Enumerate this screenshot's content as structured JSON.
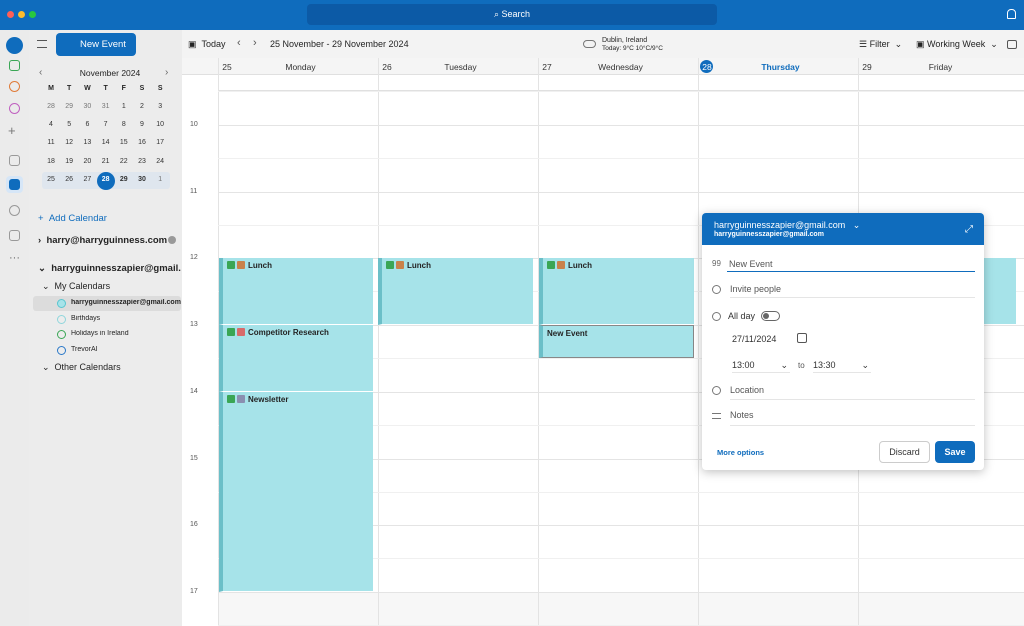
{
  "window": {
    "search": "Search"
  },
  "toolbar": {
    "new_event": "New Event",
    "today": "Today",
    "range": "25 November - 29 November 2024",
    "weather_location": "Dublin, Ireland",
    "weather_summary": "Today: 9°C 10°C/9°C",
    "filter": "Filter",
    "view": "Working Week"
  },
  "mini_calendar": {
    "month": "November 2024",
    "weekdays": [
      "M",
      "T",
      "W",
      "T",
      "F",
      "S",
      "S"
    ],
    "weeks": [
      [
        28,
        29,
        30,
        31,
        1,
        2,
        3
      ],
      [
        4,
        5,
        6,
        7,
        8,
        9,
        10
      ],
      [
        11,
        12,
        13,
        14,
        15,
        16,
        17
      ],
      [
        18,
        19,
        20,
        21,
        22,
        23,
        24
      ],
      [
        25,
        26,
        27,
        28,
        29,
        30,
        1
      ]
    ]
  },
  "sidebar": {
    "add_calendar": "Add Calendar",
    "account_1": "harry@harryguinness.com",
    "account_2": "harryguinnesszapier@gmail.com",
    "my_calendars": "My Calendars",
    "calendars": [
      "harryguinnesszapier@gmail.com",
      "Birthdays",
      "Holidays in Ireland",
      "TrevorAI"
    ],
    "other_calendars": "Other Calendars"
  },
  "calendar": {
    "days": [
      {
        "date": 25,
        "name": "Monday"
      },
      {
        "date": 26,
        "name": "Tuesday"
      },
      {
        "date": 27,
        "name": "Wednesday"
      },
      {
        "date": 28,
        "name": "Thursday"
      },
      {
        "date": 29,
        "name": "Friday"
      }
    ],
    "hours": [
      10,
      11,
      12,
      13,
      14,
      15,
      16,
      17
    ],
    "events": [
      {
        "title": "Lunch"
      },
      {
        "title": "Competitor Research"
      },
      {
        "title": "Newsletter"
      },
      {
        "title": "Lunch"
      },
      {
        "title": "Lunch"
      },
      {
        "title": "New Event"
      }
    ]
  },
  "event_form": {
    "account": "harryguinnesszapier@gmail.com",
    "account_sub": "harryguinnesszapier@gmail.com",
    "title": "New Event",
    "invite": "Invite people",
    "all_day": "All day",
    "date": "27/11/2024",
    "start": "13:00",
    "to": "to",
    "end": "13:30",
    "location": "Location",
    "notes": "Notes",
    "more_options": "More options",
    "discard": "Discard",
    "save": "Save"
  }
}
